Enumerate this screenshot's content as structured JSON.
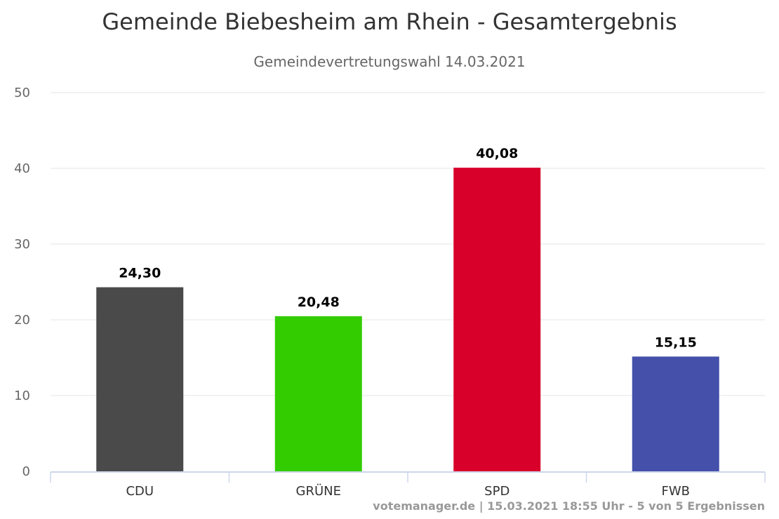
{
  "chart_data": {
    "type": "bar",
    "title": "Gemeinde Biebesheim am Rhein - Gesamtergebnis",
    "subtitle": "Gemeindevertretungswahl 14.03.2021",
    "xlabel": "",
    "ylabel": "",
    "ylim": [
      0,
      50
    ],
    "yticks": [
      0,
      10,
      20,
      30,
      40,
      50
    ],
    "grid": true,
    "legend": "none",
    "categories": [
      "CDU",
      "GRÜNE",
      "SPD",
      "FWB"
    ],
    "values": [
      24.3,
      20.48,
      40.08,
      15.15
    ],
    "data_labels": [
      "24,30",
      "20,48",
      "40,08",
      "15,15"
    ],
    "colors": [
      "#4a4a4a",
      "#33cc00",
      "#d8002a",
      "#4450aa"
    ],
    "footer": "votemanager.de | 15.03.2021 18:55 Uhr - 5 von 5 Ergebnissen"
  }
}
